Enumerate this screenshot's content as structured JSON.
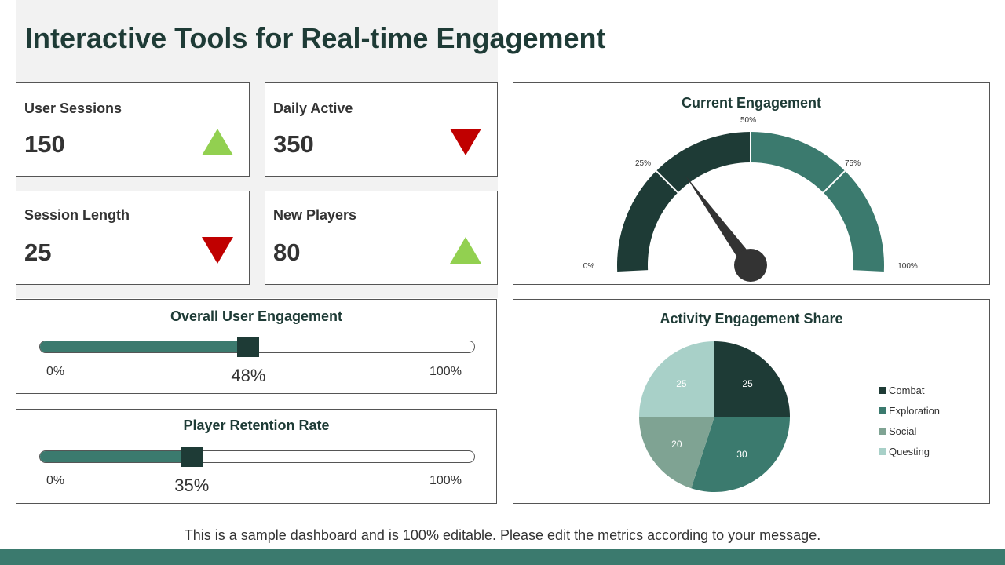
{
  "title": "Interactive Tools for Real-time Engagement",
  "kpis": [
    {
      "label": "User Sessions",
      "value": "150",
      "trend": "up"
    },
    {
      "label": "Daily Active",
      "value": "350",
      "trend": "down"
    },
    {
      "label": "Session Length",
      "value": "25",
      "trend": "down"
    },
    {
      "label": "New Players",
      "value": "80",
      "trend": "up"
    }
  ],
  "colors": {
    "up": "#92d050",
    "down": "#c00000",
    "dark": "#1e3b36",
    "teal": "#3b7a6e",
    "sage": "#7fa393",
    "mint": "#a8d0c8"
  },
  "sliders": [
    {
      "title": "Overall User Engagement",
      "value": 48,
      "value_label": "48%",
      "min_label": "0%",
      "max_label": "100%"
    },
    {
      "title": "Player Retention Rate",
      "value": 35,
      "value_label": "35%",
      "min_label": "0%",
      "max_label": "100%"
    }
  ],
  "gauge": {
    "title": "Current Engagement",
    "value": 30,
    "ticks": [
      "0%",
      "25%",
      "50%",
      "75%",
      "100%"
    ]
  },
  "chart_data": {
    "type": "pie",
    "title": "Activity Engagement Share",
    "categories": [
      "Combat",
      "Exploration",
      "Social",
      "Questing"
    ],
    "values": [
      25,
      30,
      20,
      25
    ],
    "colors": [
      "#1e3b36",
      "#3b7a6e",
      "#7fa393",
      "#a8d0c8"
    ],
    "legend": "right"
  },
  "footer": "This is a sample dashboard and is 100% editable. Please edit the metrics according to your message."
}
